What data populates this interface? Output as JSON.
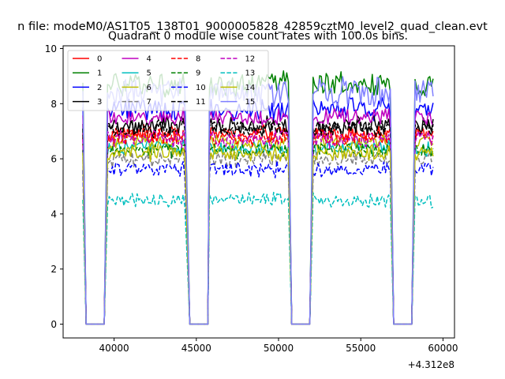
{
  "chart_data": {
    "type": "line",
    "suptitle": "n file: modeM0/AS1T05_138T01_9000005828_42859cztM0_level2_quad_clean.evt",
    "title": "Quadrant 0 module wise count rates with 100.0s bins.",
    "xlabel": "",
    "ylabel": "",
    "x_offset_label": "+4.312e8",
    "xlim": [
      36900,
      60700
    ],
    "ylim": [
      -0.5,
      10.1
    ],
    "xticks": [
      40000,
      45000,
      50000,
      55000,
      60000
    ],
    "xtick_labels": [
      "40000",
      "45000",
      "50000",
      "55000",
      "60000"
    ],
    "yticks": [
      0,
      2,
      4,
      6,
      8,
      10
    ],
    "ytick_labels": [
      "0",
      "2",
      "4",
      "6",
      "8",
      "10"
    ],
    "bin_seconds": 100,
    "on_segments": [
      [
        39600,
        44300
      ],
      [
        45800,
        50600
      ],
      [
        52100,
        56800
      ],
      [
        58300,
        59400
      ]
    ],
    "off_segments": [
      [
        38300,
        39400
      ],
      [
        44600,
        45700
      ],
      [
        50800,
        51900
      ],
      [
        57000,
        58100
      ]
    ],
    "legend_position": "upper-left",
    "series": [
      {
        "name": "0",
        "color": "#ff0000",
        "dash": "solid",
        "level": 6.9,
        "noise": 0.28
      },
      {
        "name": "1",
        "color": "#008000",
        "dash": "solid",
        "level": 8.7,
        "noise": 0.4
      },
      {
        "name": "2",
        "color": "#0000ff",
        "dash": "solid",
        "level": 7.8,
        "noise": 0.35
      },
      {
        "name": "3",
        "color": "#000000",
        "dash": "solid",
        "level": 7.2,
        "noise": 0.3
      },
      {
        "name": "4",
        "color": "#bf00bf",
        "dash": "solid",
        "level": 7.5,
        "noise": 0.3
      },
      {
        "name": "5",
        "color": "#00bfbf",
        "dash": "solid",
        "level": 6.4,
        "noise": 0.25
      },
      {
        "name": "6",
        "color": "#bfbf00",
        "dash": "solid",
        "level": 6.6,
        "noise": 0.25
      },
      {
        "name": "7",
        "color": "#808080",
        "dash": "dashed",
        "level": 6.0,
        "noise": 0.25
      },
      {
        "name": "8",
        "color": "#ff0000",
        "dash": "dashed",
        "level": 6.8,
        "noise": 0.28
      },
      {
        "name": "9",
        "color": "#008000",
        "dash": "dashed",
        "level": 6.3,
        "noise": 0.25
      },
      {
        "name": "10",
        "color": "#0000ff",
        "dash": "dashed",
        "level": 5.6,
        "noise": 0.25
      },
      {
        "name": "11",
        "color": "#000000",
        "dash": "dashed",
        "level": 7.1,
        "noise": 0.3
      },
      {
        "name": "12",
        "color": "#bf00bf",
        "dash": "dashed",
        "level": 6.7,
        "noise": 0.28
      },
      {
        "name": "13",
        "color": "#00bfbf",
        "dash": "dashed",
        "level": 4.5,
        "noise": 0.22
      },
      {
        "name": "14",
        "color": "#bfbf00",
        "dash": "solid",
        "level": 6.2,
        "noise": 0.25
      },
      {
        "name": "15",
        "color": "#7f7fff",
        "dash": "solid",
        "level": 8.4,
        "noise": 0.45
      }
    ]
  }
}
